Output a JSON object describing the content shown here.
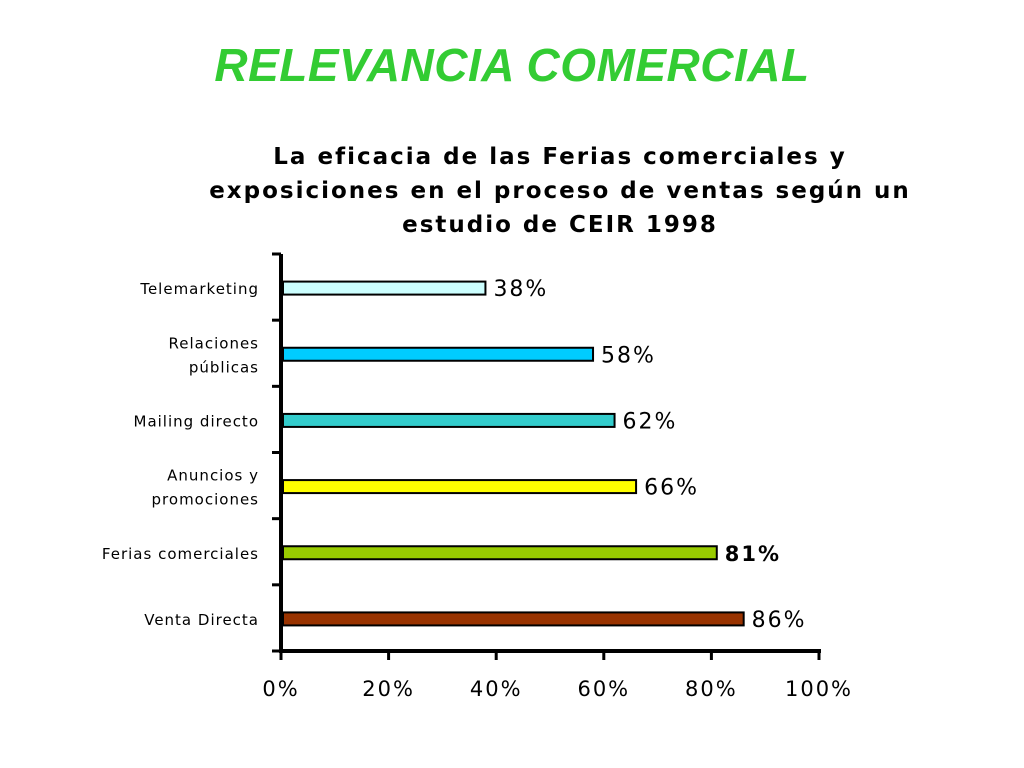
{
  "slide": {
    "title": "RELEVANCIA COMERCIAL",
    "title_color": "#33cc33"
  },
  "chart_data": {
    "type": "bar",
    "orientation": "horizontal",
    "title_lines": [
      "La eficacia de las Ferias comerciales y",
      "exposiciones en el proceso de ventas según un",
      "estudio de CEIR 1998"
    ],
    "categories": [
      [
        "Telemarketing"
      ],
      [
        "Relaciones",
        "públicas"
      ],
      [
        "Mailing directo"
      ],
      [
        "Anuncios y",
        "promociones"
      ],
      [
        "Ferias comerciales"
      ],
      [
        "Venta Directa"
      ]
    ],
    "values": [
      38,
      58,
      62,
      66,
      81,
      86
    ],
    "value_labels": [
      "38%",
      "58%",
      "62%",
      "66%",
      "81%",
      "86%"
    ],
    "bar_colors": [
      "#ccffff",
      "#00ccff",
      "#33cccc",
      "#ffff00",
      "#99cc00",
      "#993300"
    ],
    "bold_value_index": 4,
    "xlim": [
      0,
      100
    ],
    "xticks": [
      0,
      20,
      40,
      60,
      80,
      100
    ],
    "xtick_labels": [
      "0%",
      "20%",
      "40%",
      "60%",
      "80%",
      "100%"
    ],
    "xlabel": "",
    "ylabel": "",
    "grid": false,
    "legend": "none"
  }
}
